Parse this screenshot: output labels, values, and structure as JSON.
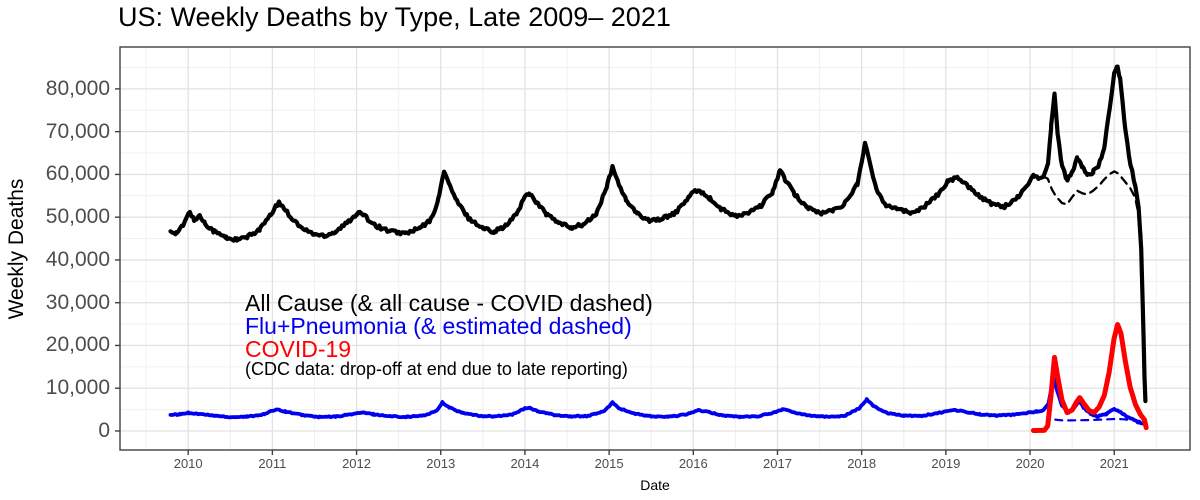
{
  "chart_data": {
    "type": "line",
    "title": "US: Weekly Deaths by Type, Late 2009– 2021",
    "xlabel": "Date",
    "ylabel": "Weekly Deaths",
    "x_ticks": [
      2010,
      2011,
      2012,
      2013,
      2014,
      2015,
      2016,
      2017,
      2018,
      2019,
      2020,
      2021
    ],
    "x_tick_labels": [
      "2010",
      "2011",
      "2012",
      "2013",
      "2014",
      "2015",
      "2016",
      "2017",
      "2018",
      "2019",
      "2020",
      "2021"
    ],
    "y_ticks": [
      0,
      10000,
      20000,
      30000,
      40000,
      50000,
      60000,
      70000,
      80000
    ],
    "y_tick_labels": [
      "0",
      "10,000",
      "20,000",
      "30,000",
      "40,000",
      "50,000",
      "60,000",
      "70,000",
      "80,000"
    ],
    "xlim": [
      2009.19,
      2021.9
    ],
    "ylim": [
      -4450,
      89800
    ],
    "grid": "major and minor, light gray on white panel",
    "legend_position": "in-plot text annotations",
    "series": [
      {
        "name": "All Cause",
        "color": "#000000",
        "dash": "solid",
        "width": 4.2,
        "jitter": 420,
        "points": [
          [
            2009.79,
            46800
          ],
          [
            2009.86,
            46300
          ],
          [
            2009.94,
            48000
          ],
          [
            2010.02,
            51400
          ],
          [
            2010.07,
            49200
          ],
          [
            2010.13,
            50400
          ],
          [
            2010.2,
            48600
          ],
          [
            2010.3,
            46800
          ],
          [
            2010.45,
            45200
          ],
          [
            2010.58,
            44700
          ],
          [
            2010.7,
            45300
          ],
          [
            2010.85,
            47200
          ],
          [
            2010.97,
            50200
          ],
          [
            2011.07,
            53400
          ],
          [
            2011.13,
            52400
          ],
          [
            2011.22,
            50000
          ],
          [
            2011.35,
            47400
          ],
          [
            2011.5,
            46000
          ],
          [
            2011.62,
            45700
          ],
          [
            2011.75,
            46600
          ],
          [
            2011.9,
            48900
          ],
          [
            2012.0,
            50800
          ],
          [
            2012.05,
            51000
          ],
          [
            2012.13,
            49600
          ],
          [
            2012.25,
            47800
          ],
          [
            2012.4,
            46700
          ],
          [
            2012.58,
            46200
          ],
          [
            2012.75,
            47400
          ],
          [
            2012.88,
            49300
          ],
          [
            2012.97,
            54000
          ],
          [
            2013.04,
            61000
          ],
          [
            2013.1,
            57600
          ],
          [
            2013.2,
            53400
          ],
          [
            2013.33,
            49800
          ],
          [
            2013.5,
            47400
          ],
          [
            2013.63,
            46700
          ],
          [
            2013.78,
            48000
          ],
          [
            2013.9,
            50800
          ],
          [
            2014.0,
            54800
          ],
          [
            2014.05,
            55700
          ],
          [
            2014.13,
            53700
          ],
          [
            2014.25,
            50800
          ],
          [
            2014.4,
            48600
          ],
          [
            2014.55,
            47600
          ],
          [
            2014.7,
            48300
          ],
          [
            2014.85,
            50800
          ],
          [
            2014.97,
            57000
          ],
          [
            2015.04,
            61600
          ],
          [
            2015.1,
            58600
          ],
          [
            2015.2,
            54000
          ],
          [
            2015.33,
            50800
          ],
          [
            2015.48,
            49300
          ],
          [
            2015.63,
            49600
          ],
          [
            2015.8,
            51200
          ],
          [
            2015.95,
            54800
          ],
          [
            2016.04,
            56300
          ],
          [
            2016.12,
            55700
          ],
          [
            2016.2,
            54300
          ],
          [
            2016.32,
            52000
          ],
          [
            2016.5,
            50200
          ],
          [
            2016.65,
            50900
          ],
          [
            2016.8,
            52600
          ],
          [
            2016.94,
            55800
          ],
          [
            2017.03,
            61000
          ],
          [
            2017.09,
            58800
          ],
          [
            2017.2,
            55400
          ],
          [
            2017.35,
            52400
          ],
          [
            2017.5,
            50900
          ],
          [
            2017.66,
            51600
          ],
          [
            2017.8,
            53200
          ],
          [
            2017.95,
            57800
          ],
          [
            2018.04,
            67400
          ],
          [
            2018.09,
            63000
          ],
          [
            2018.17,
            56800
          ],
          [
            2018.28,
            53000
          ],
          [
            2018.42,
            52100
          ],
          [
            2018.58,
            50900
          ],
          [
            2018.75,
            52600
          ],
          [
            2018.9,
            55200
          ],
          [
            2019.03,
            58600
          ],
          [
            2019.15,
            59200
          ],
          [
            2019.27,
            57200
          ],
          [
            2019.4,
            54900
          ],
          [
            2019.55,
            53100
          ],
          [
            2019.7,
            52500
          ],
          [
            2019.85,
            54600
          ],
          [
            2019.97,
            57800
          ],
          [
            2020.05,
            59800
          ],
          [
            2020.1,
            58900
          ],
          [
            2020.16,
            59900
          ],
          [
            2020.21,
            62000
          ],
          [
            2020.25,
            71000
          ],
          [
            2020.29,
            79300
          ],
          [
            2020.33,
            69000
          ],
          [
            2020.38,
            62000
          ],
          [
            2020.44,
            58600
          ],
          [
            2020.5,
            60300
          ],
          [
            2020.56,
            63700
          ],
          [
            2020.62,
            61800
          ],
          [
            2020.68,
            59900
          ],
          [
            2020.75,
            60600
          ],
          [
            2020.82,
            62400
          ],
          [
            2020.88,
            66200
          ],
          [
            2020.94,
            74500
          ],
          [
            2021.0,
            83500
          ],
          [
            2021.03,
            85600
          ],
          [
            2021.07,
            82500
          ],
          [
            2021.13,
            71000
          ],
          [
            2021.19,
            62500
          ],
          [
            2021.25,
            57500
          ],
          [
            2021.29,
            52500
          ],
          [
            2021.32,
            43000
          ],
          [
            2021.34,
            28000
          ],
          [
            2021.36,
            13000
          ],
          [
            2021.37,
            6900
          ]
        ]
      },
      {
        "name": "All Cause minus COVID (dashed)",
        "color": "#000000",
        "dash": "8,6",
        "width": 2.3,
        "jitter": 0,
        "points": [
          [
            2020.16,
            59500
          ],
          [
            2020.21,
            59000
          ],
          [
            2020.26,
            56500
          ],
          [
            2020.31,
            54800
          ],
          [
            2020.38,
            53300
          ],
          [
            2020.44,
            53000
          ],
          [
            2020.5,
            54700
          ],
          [
            2020.56,
            56200
          ],
          [
            2020.62,
            55600
          ],
          [
            2020.68,
            55300
          ],
          [
            2020.75,
            56200
          ],
          [
            2020.82,
            57400
          ],
          [
            2020.88,
            58800
          ],
          [
            2020.94,
            60000
          ],
          [
            2021.0,
            60700
          ],
          [
            2021.05,
            60200
          ],
          [
            2021.12,
            58500
          ],
          [
            2021.19,
            56800
          ],
          [
            2021.25,
            54500
          ],
          [
            2021.29,
            50500
          ],
          [
            2021.33,
            44500
          ]
        ]
      },
      {
        "name": "Flu+Pneumonia",
        "color": "#0000ee",
        "dash": "solid",
        "width": 3.8,
        "jitter": 130,
        "points": [
          [
            2009.79,
            3800
          ],
          [
            2009.9,
            3900
          ],
          [
            2010.0,
            4250
          ],
          [
            2010.1,
            4050
          ],
          [
            2010.3,
            3600
          ],
          [
            2010.5,
            3250
          ],
          [
            2010.7,
            3350
          ],
          [
            2010.9,
            3900
          ],
          [
            2011.05,
            5100
          ],
          [
            2011.15,
            4550
          ],
          [
            2011.35,
            3750
          ],
          [
            2011.55,
            3250
          ],
          [
            2011.75,
            3350
          ],
          [
            2011.95,
            3950
          ],
          [
            2012.07,
            4300
          ],
          [
            2012.2,
            3900
          ],
          [
            2012.4,
            3450
          ],
          [
            2012.6,
            3300
          ],
          [
            2012.8,
            3600
          ],
          [
            2012.95,
            4700
          ],
          [
            2013.02,
            6700
          ],
          [
            2013.1,
            5500
          ],
          [
            2013.25,
            4250
          ],
          [
            2013.45,
            3550
          ],
          [
            2013.65,
            3400
          ],
          [
            2013.85,
            3850
          ],
          [
            2014.0,
            5250
          ],
          [
            2014.06,
            5400
          ],
          [
            2014.15,
            4600
          ],
          [
            2014.35,
            3750
          ],
          [
            2014.55,
            3400
          ],
          [
            2014.75,
            3500
          ],
          [
            2014.95,
            4700
          ],
          [
            2015.04,
            6700
          ],
          [
            2015.12,
            5300
          ],
          [
            2015.3,
            4050
          ],
          [
            2015.5,
            3400
          ],
          [
            2015.7,
            3300
          ],
          [
            2015.9,
            3800
          ],
          [
            2016.06,
            4850
          ],
          [
            2016.16,
            4500
          ],
          [
            2016.35,
            3650
          ],
          [
            2016.55,
            3300
          ],
          [
            2016.75,
            3400
          ],
          [
            2016.95,
            4250
          ],
          [
            2017.06,
            5100
          ],
          [
            2017.2,
            4300
          ],
          [
            2017.4,
            3600
          ],
          [
            2017.6,
            3300
          ],
          [
            2017.8,
            3550
          ],
          [
            2017.97,
            5300
          ],
          [
            2018.06,
            7400
          ],
          [
            2018.15,
            5700
          ],
          [
            2018.3,
            4250
          ],
          [
            2018.5,
            3600
          ],
          [
            2018.7,
            3500
          ],
          [
            2018.9,
            4150
          ],
          [
            2019.06,
            4900
          ],
          [
            2019.2,
            4650
          ],
          [
            2019.4,
            3900
          ],
          [
            2019.6,
            3600
          ],
          [
            2019.8,
            3800
          ],
          [
            2019.95,
            4200
          ],
          [
            2020.08,
            4550
          ],
          [
            2020.16,
            4800
          ],
          [
            2020.22,
            6500
          ],
          [
            2020.28,
            12400
          ],
          [
            2020.32,
            9500
          ],
          [
            2020.38,
            6000
          ],
          [
            2020.46,
            4300
          ],
          [
            2020.53,
            5600
          ],
          [
            2020.58,
            7100
          ],
          [
            2020.64,
            5400
          ],
          [
            2020.72,
            4000
          ],
          [
            2020.8,
            3400
          ],
          [
            2020.9,
            3900
          ],
          [
            2021.0,
            5200
          ],
          [
            2021.08,
            4300
          ],
          [
            2021.18,
            3100
          ],
          [
            2021.28,
            2100
          ],
          [
            2021.37,
            1500
          ]
        ]
      },
      {
        "name": "Flu+Pneumonia estimated (dashed)",
        "color": "#0000ee",
        "dash": "7,6",
        "width": 2.2,
        "jitter": 0,
        "points": [
          [
            2020.3,
            2650
          ],
          [
            2020.4,
            2450
          ],
          [
            2020.55,
            2500
          ],
          [
            2020.7,
            2550
          ],
          [
            2020.85,
            2650
          ],
          [
            2021.0,
            2800
          ],
          [
            2021.1,
            2750
          ],
          [
            2021.2,
            2550
          ],
          [
            2021.3,
            2350
          ],
          [
            2021.36,
            1700
          ]
        ]
      },
      {
        "name": "COVID-19",
        "color": "#ff0000",
        "dash": "solid",
        "width": 5,
        "jitter": 0,
        "points": [
          [
            2020.04,
            100
          ],
          [
            2020.17,
            150
          ],
          [
            2020.21,
            1200
          ],
          [
            2020.25,
            8500
          ],
          [
            2020.29,
            17200
          ],
          [
            2020.33,
            12500
          ],
          [
            2020.38,
            7200
          ],
          [
            2020.44,
            4300
          ],
          [
            2020.5,
            4900
          ],
          [
            2020.55,
            6700
          ],
          [
            2020.59,
            7800
          ],
          [
            2020.64,
            6400
          ],
          [
            2020.7,
            4800
          ],
          [
            2020.76,
            4300
          ],
          [
            2020.82,
            5600
          ],
          [
            2020.88,
            8200
          ],
          [
            2020.94,
            13800
          ],
          [
            2021.0,
            21800
          ],
          [
            2021.04,
            24900
          ],
          [
            2021.08,
            22800
          ],
          [
            2021.13,
            16500
          ],
          [
            2021.19,
            10200
          ],
          [
            2021.25,
            6300
          ],
          [
            2021.31,
            3900
          ],
          [
            2021.36,
            2600
          ],
          [
            2021.38,
            800
          ]
        ]
      }
    ],
    "annotations": {
      "all_cause": "All Cause (& all cause - COVID dashed)",
      "flu_pneumonia": "Flu+Pneumonia (& estimated dashed)",
      "covid": "COVID-19",
      "note": "(CDC data: drop-off at end due to late reporting)"
    }
  },
  "colors": {
    "all_cause_black": "#000000",
    "flu_blue": "#0000ee",
    "covid_red": "#ff0000",
    "axis_text": "#4d4d4d",
    "panel_border": "#404040",
    "grid_major": "#e2e2e2",
    "grid_minor": "#f1f1f1",
    "panel_background": "#ffffff"
  }
}
